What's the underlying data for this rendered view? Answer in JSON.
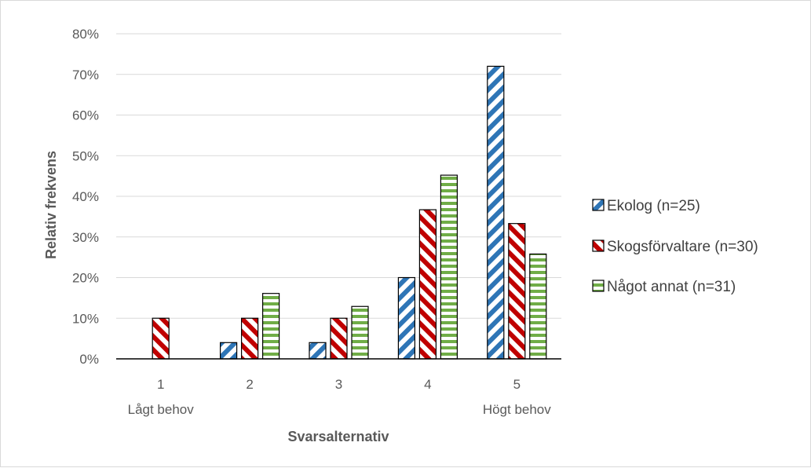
{
  "chart_data": {
    "type": "bar",
    "xlabel": "Svarsalternativ",
    "ylabel": "Relativ frekvens",
    "categories": [
      "1",
      "2",
      "3",
      "4",
      "5"
    ],
    "category_sublabels": [
      "Lågt behov",
      "",
      "",
      "",
      "Högt behov"
    ],
    "ylim": [
      0,
      80
    ],
    "yticks": [
      "0%",
      "10%",
      "20%",
      "30%",
      "40%",
      "50%",
      "60%",
      "70%",
      "80%"
    ],
    "grid": true,
    "legend_position": "right",
    "series": [
      {
        "name": "Ekolog (n=25)",
        "values": [
          0,
          4,
          4,
          20,
          72
        ],
        "color": "#2e75b6",
        "pattern": "wide-upward-diagonal"
      },
      {
        "name": "Skogsförvaltare (n=30)",
        "values": [
          10,
          10,
          10,
          36.7,
          33.3
        ],
        "color": "#c00000",
        "pattern": "wide-downward-diagonal"
      },
      {
        "name": "Något annat (n=31)",
        "values": [
          0,
          16.1,
          12.9,
          45.2,
          25.8
        ],
        "color": "#70ad47",
        "pattern": "horizontal-stripes"
      }
    ]
  }
}
